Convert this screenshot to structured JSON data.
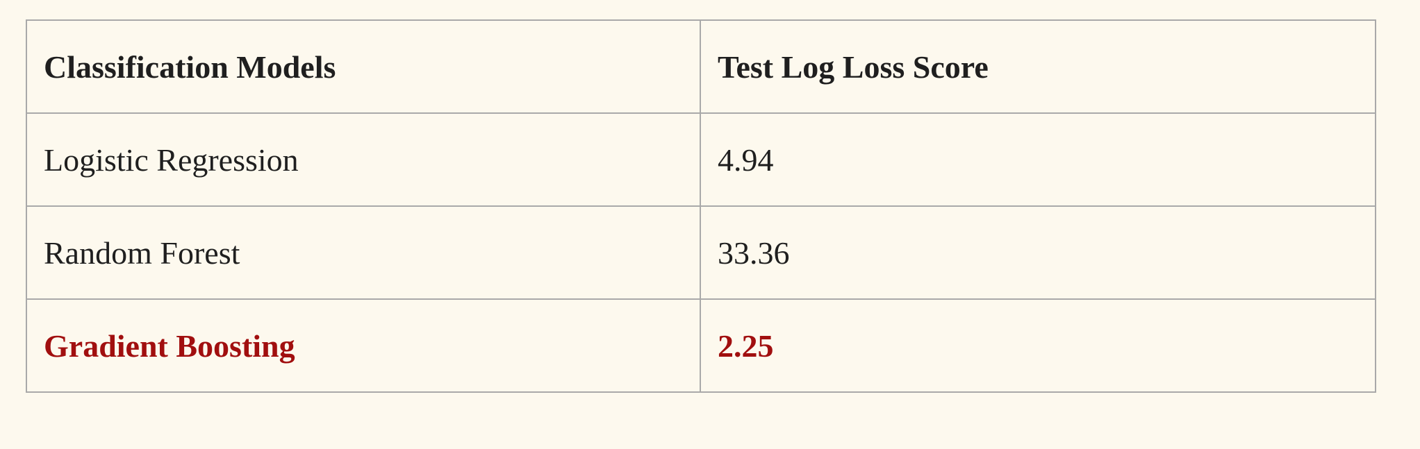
{
  "table": {
    "headers": [
      "Classification Models",
      "Test Log Loss Score"
    ],
    "rows": [
      {
        "model": "Logistic Regression",
        "score": "4.94",
        "highlight": false
      },
      {
        "model": "Random Forest",
        "score": "33.36",
        "highlight": false
      },
      {
        "model": "Gradient Boosting",
        "score": "2.25",
        "highlight": true
      }
    ],
    "highlight_color": "#a10f0f",
    "border_color": "#a9a9a9",
    "background_color": "#fdf9ee"
  }
}
